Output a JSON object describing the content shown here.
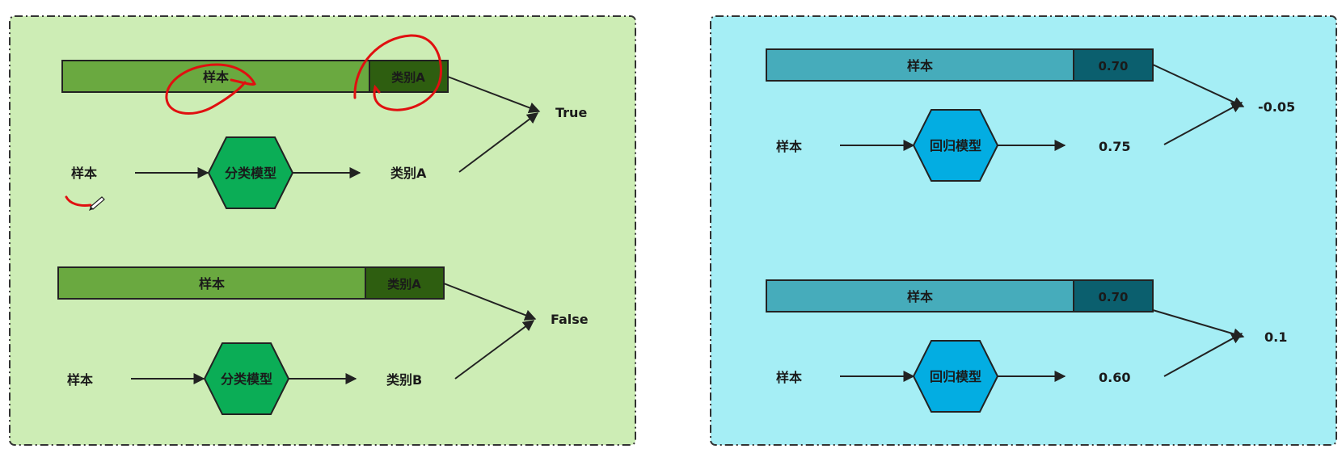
{
  "classification": {
    "row1": {
      "bar_left": "样本",
      "bar_right": "类别A",
      "input": "样本",
      "model": "分类模型",
      "output": "类别A",
      "result": "True"
    },
    "row2": {
      "bar_left": "样本",
      "bar_right": "类别A",
      "input": "样本",
      "model": "分类模型",
      "output": "类别B",
      "result": "False"
    }
  },
  "regression": {
    "row1": {
      "bar_left": "样本",
      "bar_right": "0.70",
      "input": "样本",
      "model": "回归模型",
      "output": "0.75",
      "result": "-0.05"
    },
    "row2": {
      "bar_left": "样本",
      "bar_right": "0.70",
      "input": "样本",
      "model": "回归模型",
      "output": "0.60",
      "result": "0.1"
    }
  },
  "colors": {
    "panel_green": "#cdedb5",
    "panel_cyan": "#a5eef5",
    "bar_green": "#6aa940",
    "bar_green_dark": "#2e5e10",
    "hex_green": "#0bad56",
    "bar_teal": "#46acbb",
    "bar_teal_dark": "#0b5f6e",
    "hex_blue": "#03ade2",
    "annotation_red": "#e01010",
    "stroke": "#222222"
  }
}
